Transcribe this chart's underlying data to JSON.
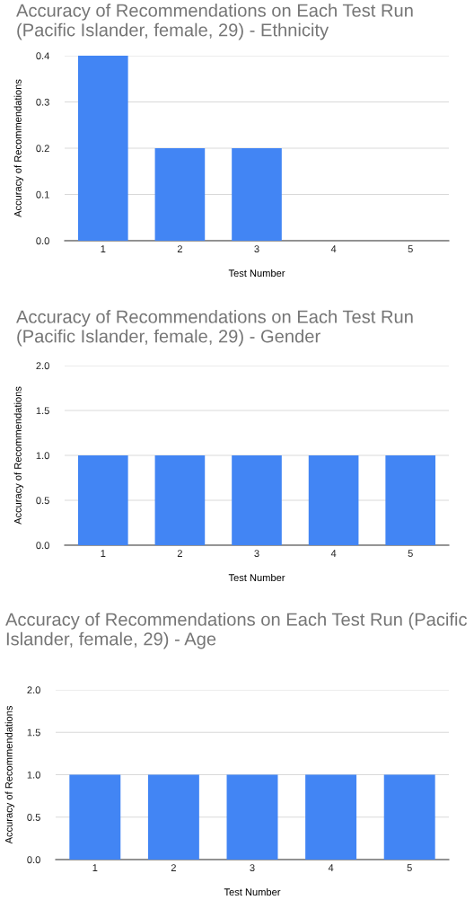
{
  "chart_data": [
    {
      "type": "bar",
      "title": "Accuracy of Recommendations on Each Test Run (Pacific Islander, female, 29) - Ethnicity",
      "xlabel": "Test Number",
      "ylabel": "Accuracy of Recommendations",
      "categories": [
        "1",
        "2",
        "3",
        "4",
        "5"
      ],
      "values": [
        0.4,
        0.2,
        0.2,
        0,
        0
      ],
      "color": "#4285f4",
      "ylim": [
        0,
        0.4
      ],
      "yticks": [
        {
          "value": 0,
          "label": "0.0"
        },
        0.1,
        0.2,
        0.3,
        0.4
      ],
      "grid": "y"
    },
    {
      "type": "bar",
      "title": "Accuracy of Recommendations on Each Test Run (Pacific Islander, female, 29) - Gender",
      "xlabel": "Test Number",
      "ylabel": "Accuracy of Recommendations",
      "categories": [
        "1",
        "2",
        "3",
        "4",
        "5"
      ],
      "values": [
        1,
        1,
        1,
        1,
        1
      ],
      "color": "#4285f4",
      "ylim": [
        0,
        2
      ],
      "yticks": [
        {
          "value": 0,
          "label": "0.0"
        },
        {
          "value": 0.5,
          "label": "0.5"
        },
        {
          "value": 1,
          "label": "1.0"
        },
        {
          "value": 1.5,
          "label": "1.5"
        },
        {
          "value": 2,
          "label": "2.0"
        }
      ],
      "grid": "y"
    },
    {
      "type": "bar",
      "title": "Accuracy of Recommendations on Each Test Run (Pacific Islander, female, 29) - Age",
      "xlabel": "Test Number",
      "ylabel": "Accuracy of Recommendations",
      "categories": [
        "1",
        "2",
        "3",
        "4",
        "5"
      ],
      "values": [
        1,
        1,
        1,
        1,
        1
      ],
      "color": "#4285f4",
      "ylim": [
        0,
        2
      ],
      "yticks": [
        {
          "value": 0,
          "label": "0.0"
        },
        {
          "value": 0.5,
          "label": "0.5"
        },
        {
          "value": 1,
          "label": "1.0"
        },
        {
          "value": 1.5,
          "label": "1.5"
        },
        {
          "value": 2,
          "label": "2.0"
        }
      ],
      "grid": "y"
    }
  ]
}
